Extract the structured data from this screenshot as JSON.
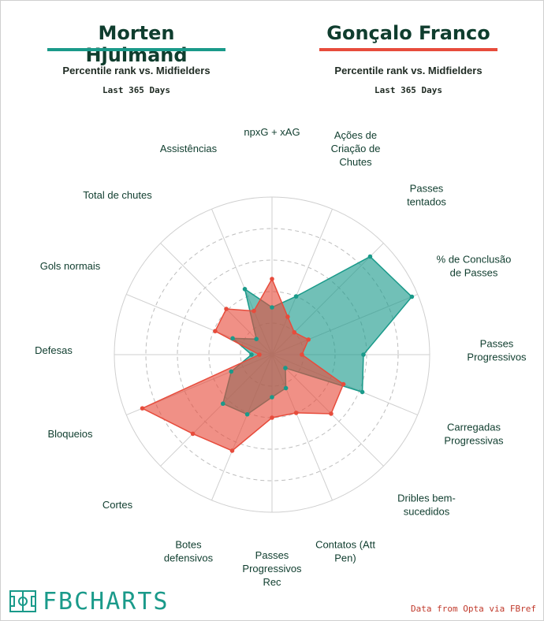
{
  "header": {
    "player1": {
      "name": "Morten Hjulmand",
      "color": "#1a9a8a"
    },
    "player2": {
      "name": "Gonçalo Franco",
      "color": "#e74c3c"
    },
    "subtitle": "Percentile rank vs. Midfielders",
    "period": "Last 365 Days"
  },
  "footer": {
    "logo": "FBCHARTS",
    "source": "Data from Opta via FBref"
  },
  "chart_data": {
    "type": "radar",
    "rmax": 100,
    "rings": [
      20,
      40,
      60,
      80,
      100
    ],
    "axes": [
      "npxG + xAG",
      "Ações de Criação de Chutes",
      "Passes tentados",
      "% de Conclusão de Passes",
      "Passes Progressivos",
      "Carregadas Progressivas",
      "Dribles bem-sucedidos",
      "Contatos (Att Pen)",
      "Passes Progressivos Rec",
      "Botes defensivos",
      "Cortes",
      "Bloqueios",
      "Defesas",
      "Gols normais",
      "Total de chutes",
      "Assistências"
    ],
    "series": [
      {
        "name": "Morten Hjulmand",
        "color": "#1a9a8a",
        "values": [
          30,
          40,
          88,
          96,
          58,
          62,
          12,
          23,
          27,
          41,
          44,
          28,
          13,
          27,
          14,
          45
        ]
      },
      {
        "name": "Gonçalo Franco",
        "color": "#e74c3c",
        "values": [
          48,
          26,
          20,
          25,
          19,
          49,
          53,
          40,
          40,
          66,
          71,
          89,
          8,
          39,
          41,
          30
        ]
      }
    ],
    "grid": true
  }
}
